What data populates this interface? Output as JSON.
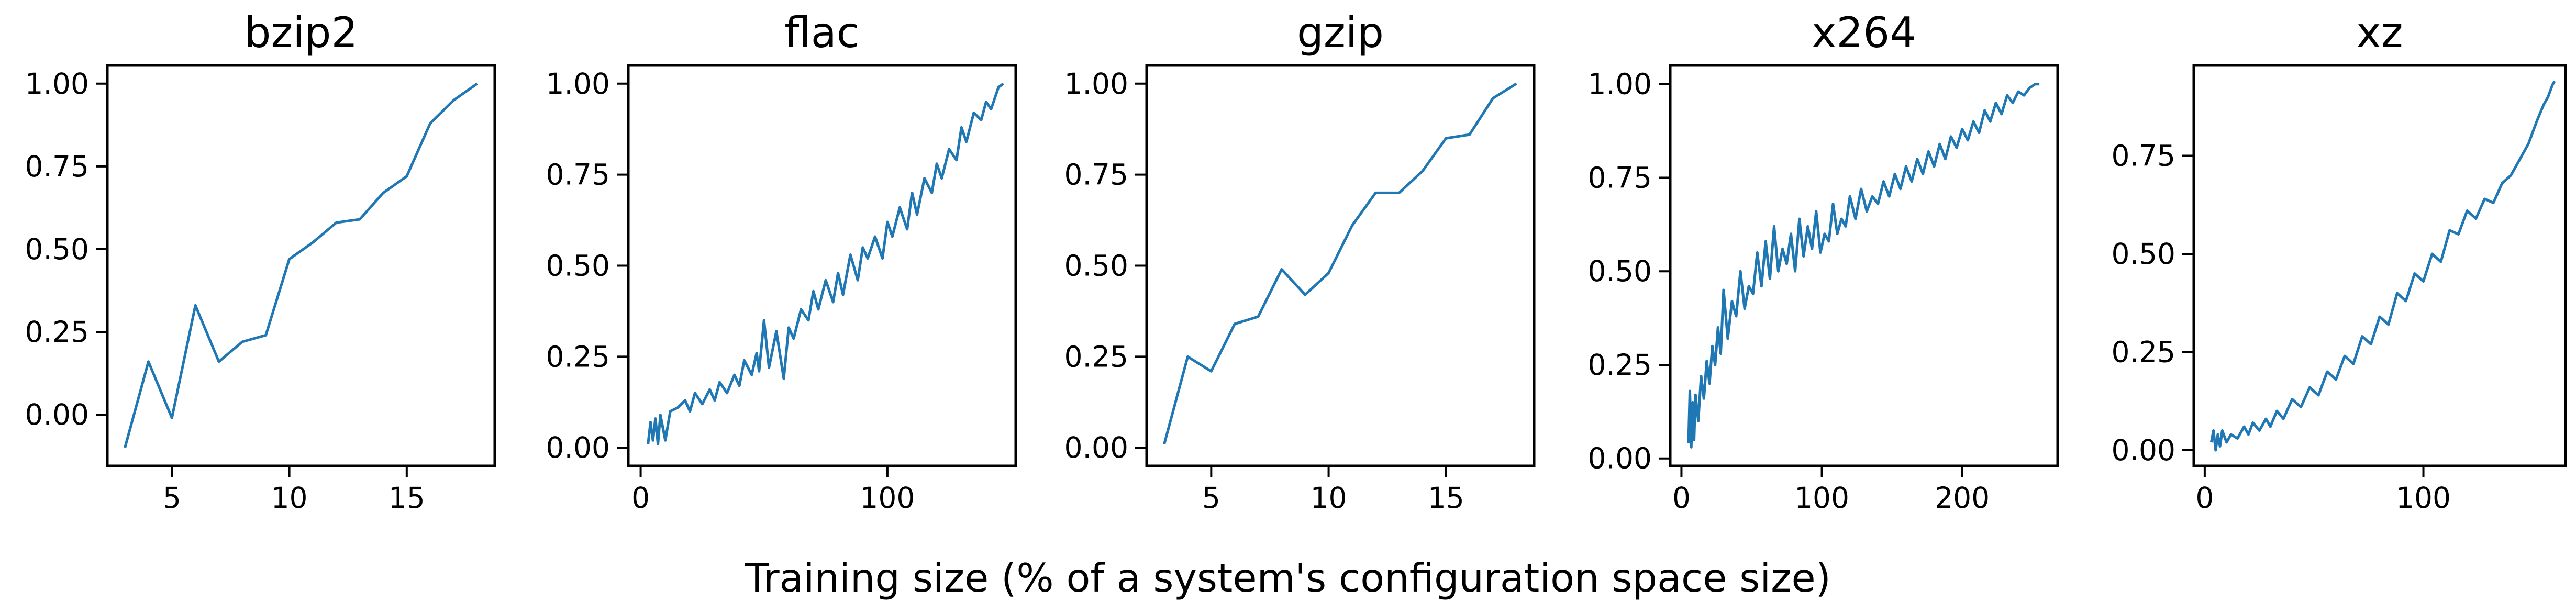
{
  "figure": {
    "xlabel": "Training size (% of a system's configuration space size)"
  },
  "chart_data": [
    {
      "type": "line",
      "title": "bzip2",
      "xlabel": "",
      "ylabel": "",
      "xlim": [
        2.25,
        18.75
      ],
      "ylim": [
        -0.155,
        1.055
      ],
      "xticks": [
        5,
        10,
        15
      ],
      "xtick_labels": [
        "5",
        "10",
        "15"
      ],
      "yticks": [
        0,
        0.25,
        0.5,
        0.75,
        1.0
      ],
      "ytick_labels": [
        "0.00",
        "0.25",
        "0.50",
        "0.75",
        "1.00"
      ],
      "color": "#1f77b4",
      "grid": false,
      "series": [
        {
          "x": [
            3,
            4,
            5,
            6,
            7,
            8,
            9,
            10,
            11,
            12,
            13,
            14,
            15,
            16,
            17,
            18
          ],
          "y": [
            -0.1,
            0.16,
            -0.01,
            0.33,
            0.16,
            0.22,
            0.24,
            0.47,
            0.52,
            0.58,
            0.59,
            0.67,
            0.72,
            0.88,
            0.95,
            1.0
          ]
        }
      ]
    },
    {
      "type": "line",
      "title": "flac",
      "xlabel": "",
      "ylabel": "",
      "xlim": [
        -5,
        152
      ],
      "ylim": [
        -0.05,
        1.05
      ],
      "xticks": [
        0,
        100
      ],
      "xtick_labels": [
        "0",
        "100"
      ],
      "yticks": [
        0,
        0.25,
        0.5,
        0.75,
        1.0
      ],
      "ytick_labels": [
        "0.00",
        "0.25",
        "0.50",
        "0.75",
        "1.00"
      ],
      "color": "#1f77b4",
      "grid": false,
      "series": [
        {
          "x": [
            3,
            4,
            5,
            6,
            7,
            8,
            10,
            12,
            15,
            18,
            20,
            22,
            25,
            28,
            30,
            32,
            35,
            38,
            40,
            42,
            45,
            47,
            48,
            50,
            52,
            55,
            58,
            60,
            62,
            65,
            68,
            70,
            72,
            75,
            78,
            80,
            82,
            85,
            88,
            90,
            92,
            95,
            98,
            100,
            102,
            105,
            108,
            110,
            112,
            115,
            118,
            120,
            122,
            125,
            128,
            130,
            132,
            135,
            138,
            140,
            142,
            145,
            147
          ],
          "y": [
            0.01,
            0.07,
            0.02,
            0.08,
            0.01,
            0.09,
            0.02,
            0.1,
            0.11,
            0.13,
            0.1,
            0.15,
            0.12,
            0.16,
            0.13,
            0.18,
            0.15,
            0.2,
            0.17,
            0.24,
            0.2,
            0.26,
            0.21,
            0.35,
            0.22,
            0.32,
            0.19,
            0.33,
            0.3,
            0.38,
            0.35,
            0.43,
            0.38,
            0.46,
            0.4,
            0.48,
            0.42,
            0.53,
            0.46,
            0.55,
            0.52,
            0.58,
            0.52,
            0.62,
            0.58,
            0.66,
            0.6,
            0.7,
            0.64,
            0.74,
            0.7,
            0.78,
            0.74,
            0.82,
            0.79,
            0.88,
            0.84,
            0.92,
            0.9,
            0.95,
            0.93,
            0.99,
            1.0
          ]
        }
      ]
    },
    {
      "type": "line",
      "title": "gzip",
      "xlabel": "",
      "ylabel": "",
      "xlim": [
        2.25,
        18.75
      ],
      "ylim": [
        -0.05,
        1.05
      ],
      "xticks": [
        5,
        10,
        15
      ],
      "xtick_labels": [
        "5",
        "10",
        "15"
      ],
      "yticks": [
        0,
        0.25,
        0.5,
        0.75,
        1.0
      ],
      "ytick_labels": [
        "0.00",
        "0.25",
        "0.50",
        "0.75",
        "1.00"
      ],
      "color": "#1f77b4",
      "grid": false,
      "series": [
        {
          "x": [
            3,
            4,
            5,
            6,
            7,
            8,
            9,
            10,
            11,
            12,
            13,
            14,
            15,
            16,
            17,
            18
          ],
          "y": [
            0.01,
            0.25,
            0.21,
            0.34,
            0.36,
            0.49,
            0.42,
            0.48,
            0.61,
            0.7,
            0.7,
            0.76,
            0.85,
            0.86,
            0.96,
            1.0
          ]
        }
      ]
    },
    {
      "type": "line",
      "title": "x264",
      "xlabel": "",
      "ylabel": "",
      "xlim": [
        -8,
        268
      ],
      "ylim": [
        -0.02,
        1.05
      ],
      "xticks": [
        0,
        100,
        200
      ],
      "xtick_labels": [
        "0",
        "100",
        "200"
      ],
      "yticks": [
        0,
        0.25,
        0.5,
        0.75,
        1.0
      ],
      "ytick_labels": [
        "0.00",
        "0.25",
        "0.50",
        "0.75",
        "1.00"
      ],
      "color": "#1f77b4",
      "grid": false,
      "series": [
        {
          "x": [
            5,
            6,
            7,
            8,
            9,
            10,
            12,
            14,
            16,
            18,
            20,
            22,
            24,
            26,
            28,
            30,
            33,
            36,
            39,
            42,
            45,
            48,
            51,
            54,
            57,
            60,
            63,
            66,
            69,
            72,
            75,
            78,
            81,
            84,
            87,
            90,
            93,
            96,
            99,
            102,
            105,
            108,
            111,
            114,
            117,
            120,
            124,
            128,
            132,
            136,
            140,
            144,
            148,
            152,
            156,
            160,
            164,
            168,
            172,
            176,
            180,
            184,
            188,
            192,
            196,
            200,
            204,
            208,
            212,
            216,
            220,
            224,
            228,
            232,
            236,
            240,
            244,
            248,
            252,
            255
          ],
          "y": [
            0.04,
            0.18,
            0.03,
            0.15,
            0.05,
            0.17,
            0.1,
            0.22,
            0.16,
            0.26,
            0.2,
            0.3,
            0.25,
            0.35,
            0.28,
            0.45,
            0.32,
            0.42,
            0.38,
            0.5,
            0.4,
            0.46,
            0.44,
            0.55,
            0.46,
            0.58,
            0.48,
            0.62,
            0.5,
            0.56,
            0.52,
            0.6,
            0.5,
            0.64,
            0.54,
            0.62,
            0.56,
            0.66,
            0.55,
            0.6,
            0.58,
            0.68,
            0.6,
            0.64,
            0.62,
            0.7,
            0.64,
            0.72,
            0.66,
            0.7,
            0.68,
            0.74,
            0.7,
            0.76,
            0.72,
            0.78,
            0.74,
            0.8,
            0.76,
            0.82,
            0.78,
            0.84,
            0.8,
            0.86,
            0.83,
            0.88,
            0.85,
            0.9,
            0.87,
            0.93,
            0.9,
            0.95,
            0.92,
            0.97,
            0.95,
            0.98,
            0.97,
            0.99,
            1.0,
            1.0
          ]
        }
      ]
    },
    {
      "type": "line",
      "title": "xz",
      "xlabel": "",
      "ylabel": "",
      "xlim": [
        -5,
        165
      ],
      "ylim": [
        -0.04,
        0.98
      ],
      "xticks": [
        0,
        100
      ],
      "xtick_labels": [
        "0",
        "100"
      ],
      "yticks": [
        0,
        0.25,
        0.5,
        0.75
      ],
      "ytick_labels": [
        "0.00",
        "0.25",
        "0.50",
        "0.75"
      ],
      "color": "#1f77b4",
      "grid": false,
      "series": [
        {
          "x": [
            3,
            4,
            5,
            6,
            7,
            8,
            10,
            12,
            15,
            18,
            20,
            22,
            25,
            28,
            30,
            33,
            36,
            40,
            44,
            48,
            52,
            56,
            60,
            64,
            68,
            72,
            76,
            80,
            84,
            88,
            92,
            96,
            100,
            104,
            108,
            112,
            116,
            120,
            124,
            128,
            132,
            136,
            140,
            144,
            148,
            152,
            155,
            157,
            159,
            160
          ],
          "y": [
            0.02,
            0.05,
            0.0,
            0.04,
            0.01,
            0.05,
            0.02,
            0.04,
            0.03,
            0.06,
            0.04,
            0.07,
            0.05,
            0.08,
            0.06,
            0.1,
            0.08,
            0.13,
            0.11,
            0.16,
            0.14,
            0.2,
            0.18,
            0.24,
            0.22,
            0.29,
            0.27,
            0.34,
            0.32,
            0.4,
            0.38,
            0.45,
            0.43,
            0.5,
            0.48,
            0.56,
            0.55,
            0.61,
            0.59,
            0.64,
            0.63,
            0.68,
            0.7,
            0.74,
            0.78,
            0.84,
            0.88,
            0.9,
            0.93,
            0.94
          ]
        }
      ]
    }
  ]
}
